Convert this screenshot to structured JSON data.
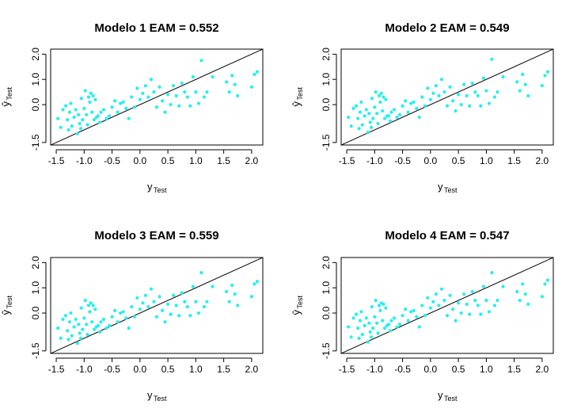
{
  "chart_data": [
    {
      "type": "scatter",
      "title": "Modelo 1 EAM = 0.552",
      "xlabel": "y",
      "xlabel_sub": "Test",
      "ylabel": "ŷ",
      "ylabel_sub": "Test",
      "xlim": [
        -1.6,
        2.2
      ],
      "ylim": [
        -1.6,
        2.2
      ],
      "xticks": [
        "-1.5",
        "-1.0",
        "-0.5",
        "0.0",
        "0.5",
        "1.0",
        "1.5",
        "2.0"
      ],
      "yticks": [
        "-1.5",
        "0.0",
        "1.0",
        "2.0"
      ],
      "grid": false,
      "reference_line": "y = x",
      "point_color": "#22f0f0",
      "line_color": "#000000",
      "x": [
        -1.47,
        -1.42,
        -1.38,
        -1.33,
        -1.3,
        -1.28,
        -1.26,
        -1.24,
        -1.22,
        -1.18,
        -1.15,
        -1.12,
        -1.1,
        -1.08,
        -1.06,
        -1.05,
        -1.03,
        -1.0,
        -0.98,
        -0.96,
        -0.94,
        -0.92,
        -0.9,
        -0.88,
        -0.86,
        -0.84,
        -0.82,
        -0.8,
        -0.78,
        -0.75,
        -0.72,
        -0.7,
        -0.65,
        -0.6,
        -0.55,
        -0.5,
        -0.45,
        -0.4,
        -0.35,
        -0.3,
        -0.25,
        -0.2,
        -0.15,
        -0.1,
        -0.05,
        0.0,
        0.05,
        0.1,
        0.15,
        0.2,
        0.25,
        0.3,
        0.35,
        0.4,
        0.45,
        0.5,
        0.55,
        0.6,
        0.65,
        0.7,
        0.75,
        0.8,
        0.85,
        0.9,
        0.95,
        1.0,
        1.05,
        1.1,
        1.15,
        1.2,
        1.3,
        1.55,
        1.6,
        1.65,
        1.7,
        1.75,
        2.0,
        2.05,
        2.1
      ],
      "y": [
        -0.55,
        -0.9,
        -0.2,
        -0.05,
        -0.6,
        -1.0,
        -0.3,
        0.05,
        -0.85,
        -0.5,
        -0.2,
        -1.15,
        -0.4,
        -0.75,
        -0.95,
        0.25,
        -0.6,
        -0.15,
        0.55,
        -0.4,
        -0.8,
        0.3,
        0.1,
        0.45,
        -0.3,
        0.35,
        -0.6,
        0.2,
        -0.5,
        -0.45,
        -0.7,
        -0.3,
        -0.2,
        -0.55,
        -0.45,
        -0.1,
        0.15,
        -0.3,
        0.05,
        0.1,
        -0.15,
        -0.55,
        0.3,
        -0.1,
        0.65,
        0.2,
        0.45,
        0.75,
        0.3,
        1.0,
        0.5,
        -0.1,
        0.7,
        0.15,
        -0.3,
        0.4,
        0.0,
        0.75,
        0.35,
        -0.05,
        0.85,
        0.5,
        0.3,
        -0.05,
        1.1,
        0.5,
        0.05,
        1.75,
        0.3,
        0.5,
        1.1,
        0.9,
        0.5,
        1.15,
        0.8,
        0.35,
        0.7,
        1.2,
        1.3
      ]
    },
    {
      "type": "scatter",
      "title": "Modelo 2 EAM = 0.549",
      "xlabel": "y",
      "xlabel_sub": "Test",
      "ylabel": "ŷ",
      "ylabel_sub": "Test",
      "xlim": [
        -1.6,
        2.2
      ],
      "ylim": [
        -1.6,
        2.2
      ],
      "xticks": [
        "-1.5",
        "-1.0",
        "-0.5",
        "0.0",
        "0.5",
        "1.0",
        "1.5",
        "2.0"
      ],
      "yticks": [
        "-1.5",
        "0.0",
        "1.0",
        "2.0"
      ],
      "grid": false,
      "reference_line": "y = x",
      "point_color": "#22f0f0",
      "line_color": "#000000",
      "x": [
        -1.47,
        -1.42,
        -1.38,
        -1.33,
        -1.3,
        -1.28,
        -1.26,
        -1.24,
        -1.22,
        -1.18,
        -1.15,
        -1.12,
        -1.1,
        -1.08,
        -1.06,
        -1.05,
        -1.03,
        -1.0,
        -0.98,
        -0.96,
        -0.94,
        -0.92,
        -0.9,
        -0.88,
        -0.86,
        -0.84,
        -0.82,
        -0.8,
        -0.78,
        -0.75,
        -0.72,
        -0.7,
        -0.65,
        -0.6,
        -0.55,
        -0.5,
        -0.45,
        -0.4,
        -0.35,
        -0.3,
        -0.25,
        -0.2,
        -0.15,
        -0.1,
        -0.05,
        0.0,
        0.05,
        0.1,
        0.15,
        0.2,
        0.25,
        0.3,
        0.35,
        0.4,
        0.45,
        0.5,
        0.55,
        0.6,
        0.65,
        0.7,
        0.75,
        0.8,
        0.85,
        0.9,
        0.95,
        1.0,
        1.05,
        1.1,
        1.15,
        1.2,
        1.3,
        1.55,
        1.6,
        1.65,
        1.7,
        1.75,
        2.0,
        2.05,
        2.1
      ],
      "y": [
        -0.5,
        -0.85,
        -0.15,
        -0.05,
        -0.55,
        -0.95,
        -0.3,
        0.1,
        -0.8,
        -0.45,
        -0.2,
        -1.1,
        -0.35,
        -0.7,
        -0.9,
        0.25,
        -0.55,
        -0.1,
        0.5,
        -0.35,
        -0.75,
        0.35,
        0.1,
        0.45,
        -0.25,
        0.3,
        -0.55,
        0.2,
        -0.45,
        -0.45,
        -0.65,
        -0.3,
        -0.2,
        -0.5,
        -0.4,
        -0.05,
        0.15,
        -0.3,
        0.05,
        0.1,
        -0.15,
        -0.5,
        0.3,
        -0.05,
        0.65,
        0.2,
        0.45,
        0.75,
        0.35,
        1.0,
        0.5,
        -0.05,
        0.7,
        0.15,
        -0.25,
        0.4,
        0.0,
        0.8,
        0.35,
        -0.05,
        0.85,
        0.5,
        0.35,
        -0.05,
        1.05,
        0.55,
        0.05,
        1.8,
        0.3,
        0.5,
        1.1,
        0.9,
        0.55,
        1.2,
        0.8,
        0.35,
        0.75,
        1.15,
        1.3
      ]
    },
    {
      "type": "scatter",
      "title": "Modelo 3 EAM = 0.559",
      "xlabel": "y",
      "xlabel_sub": "Test",
      "ylabel": "ŷ",
      "ylabel_sub": "Test",
      "xlim": [
        -1.6,
        2.2
      ],
      "ylim": [
        -1.6,
        2.2
      ],
      "xticks": [
        "-1.5",
        "-1.0",
        "-0.5",
        "0.0",
        "0.5",
        "1.0",
        "1.5",
        "2.0"
      ],
      "yticks": [
        "-1.5",
        "0.0",
        "1.0",
        "2.0"
      ],
      "grid": false,
      "reference_line": "y = x",
      "point_color": "#22f0f0",
      "line_color": "#000000",
      "x": [
        -1.47,
        -1.42,
        -1.38,
        -1.33,
        -1.3,
        -1.28,
        -1.26,
        -1.24,
        -1.22,
        -1.18,
        -1.15,
        -1.12,
        -1.1,
        -1.08,
        -1.06,
        -1.05,
        -1.03,
        -1.0,
        -0.98,
        -0.96,
        -0.94,
        -0.92,
        -0.9,
        -0.88,
        -0.86,
        -0.84,
        -0.82,
        -0.8,
        -0.78,
        -0.75,
        -0.72,
        -0.7,
        -0.65,
        -0.6,
        -0.55,
        -0.5,
        -0.45,
        -0.4,
        -0.35,
        -0.3,
        -0.25,
        -0.2,
        -0.15,
        -0.1,
        -0.05,
        0.0,
        0.05,
        0.1,
        0.15,
        0.2,
        0.25,
        0.3,
        0.35,
        0.4,
        0.45,
        0.5,
        0.55,
        0.6,
        0.65,
        0.7,
        0.75,
        0.8,
        0.85,
        0.9,
        0.95,
        1.0,
        1.05,
        1.1,
        1.15,
        1.2,
        1.3,
        1.55,
        1.6,
        1.65,
        1.7,
        1.75,
        2.0,
        2.05,
        2.1
      ],
      "y": [
        -0.6,
        -1.0,
        -0.25,
        -0.1,
        -0.7,
        -1.05,
        -0.35,
        0.0,
        -0.9,
        -0.55,
        -0.25,
        -1.2,
        -0.45,
        -0.8,
        -1.0,
        0.2,
        -0.65,
        -0.2,
        0.5,
        -0.45,
        -0.85,
        0.3,
        0.05,
        0.4,
        -0.35,
        0.3,
        -0.65,
        0.15,
        -0.55,
        -0.5,
        -0.75,
        -0.35,
        -0.25,
        -0.6,
        -0.5,
        -0.15,
        0.1,
        -0.35,
        0.0,
        0.05,
        -0.2,
        -0.6,
        0.25,
        -0.15,
        0.6,
        0.15,
        0.4,
        0.7,
        0.25,
        0.95,
        0.45,
        -0.15,
        0.65,
        0.1,
        -0.35,
        0.35,
        -0.05,
        0.7,
        0.3,
        -0.1,
        0.8,
        0.45,
        0.25,
        -0.1,
        1.05,
        0.45,
        0.0,
        1.6,
        0.25,
        0.45,
        1.05,
        0.85,
        0.45,
        1.1,
        0.75,
        0.3,
        0.65,
        1.15,
        1.25
      ]
    },
    {
      "type": "scatter",
      "title": "Modelo 4 EAM = 0.547",
      "xlabel": "y",
      "xlabel_sub": "Test",
      "ylabel": "ŷ",
      "ylabel_sub": "Test",
      "xlim": [
        -1.6,
        2.2
      ],
      "ylim": [
        -1.6,
        2.2
      ],
      "xticks": [
        "-1.5",
        "-1.0",
        "-0.5",
        "0.0",
        "0.5",
        "1.0",
        "1.5",
        "2.0"
      ],
      "yticks": [
        "-1.5",
        "0.0",
        "1.0",
        "2.0"
      ],
      "grid": false,
      "reference_line": "y = x",
      "point_color": "#22f0f0",
      "line_color": "#000000",
      "x": [
        -1.47,
        -1.42,
        -1.38,
        -1.33,
        -1.3,
        -1.28,
        -1.26,
        -1.24,
        -1.22,
        -1.18,
        -1.15,
        -1.12,
        -1.1,
        -1.08,
        -1.06,
        -1.05,
        -1.03,
        -1.0,
        -0.98,
        -0.96,
        -0.94,
        -0.92,
        -0.9,
        -0.88,
        -0.86,
        -0.84,
        -0.82,
        -0.8,
        -0.78,
        -0.75,
        -0.72,
        -0.7,
        -0.65,
        -0.6,
        -0.55,
        -0.5,
        -0.45,
        -0.4,
        -0.35,
        -0.3,
        -0.25,
        -0.2,
        -0.15,
        -0.1,
        -0.05,
        0.0,
        0.05,
        0.1,
        0.15,
        0.2,
        0.25,
        0.3,
        0.35,
        0.4,
        0.45,
        0.5,
        0.55,
        0.6,
        0.65,
        0.7,
        0.75,
        0.8,
        0.85,
        0.9,
        0.95,
        1.0,
        1.05,
        1.1,
        1.15,
        1.2,
        1.3,
        1.55,
        1.6,
        1.65,
        1.7,
        1.75,
        2.0,
        2.05,
        2.1
      ],
      "y": [
        -0.55,
        -0.95,
        -0.2,
        -0.05,
        -0.6,
        -1.0,
        -0.3,
        0.05,
        -0.85,
        -0.5,
        -0.2,
        -1.15,
        -0.4,
        -0.75,
        -0.95,
        0.25,
        -0.6,
        -0.15,
        0.5,
        -0.4,
        -0.8,
        0.3,
        0.1,
        0.4,
        -0.3,
        0.35,
        -0.6,
        0.2,
        -0.5,
        -0.45,
        -0.7,
        -0.3,
        -0.2,
        -0.55,
        -0.45,
        -0.1,
        0.15,
        -0.3,
        0.05,
        0.1,
        -0.15,
        -0.55,
        0.3,
        -0.1,
        0.6,
        0.2,
        0.45,
        0.75,
        0.3,
        0.95,
        0.5,
        -0.1,
        0.7,
        0.15,
        -0.3,
        0.4,
        0.0,
        0.75,
        0.35,
        -0.05,
        0.85,
        0.5,
        0.3,
        -0.05,
        1.05,
        0.5,
        0.05,
        1.6,
        0.3,
        0.5,
        1.05,
        0.85,
        0.5,
        1.15,
        0.75,
        0.35,
        0.65,
        1.15,
        1.3
      ]
    }
  ]
}
